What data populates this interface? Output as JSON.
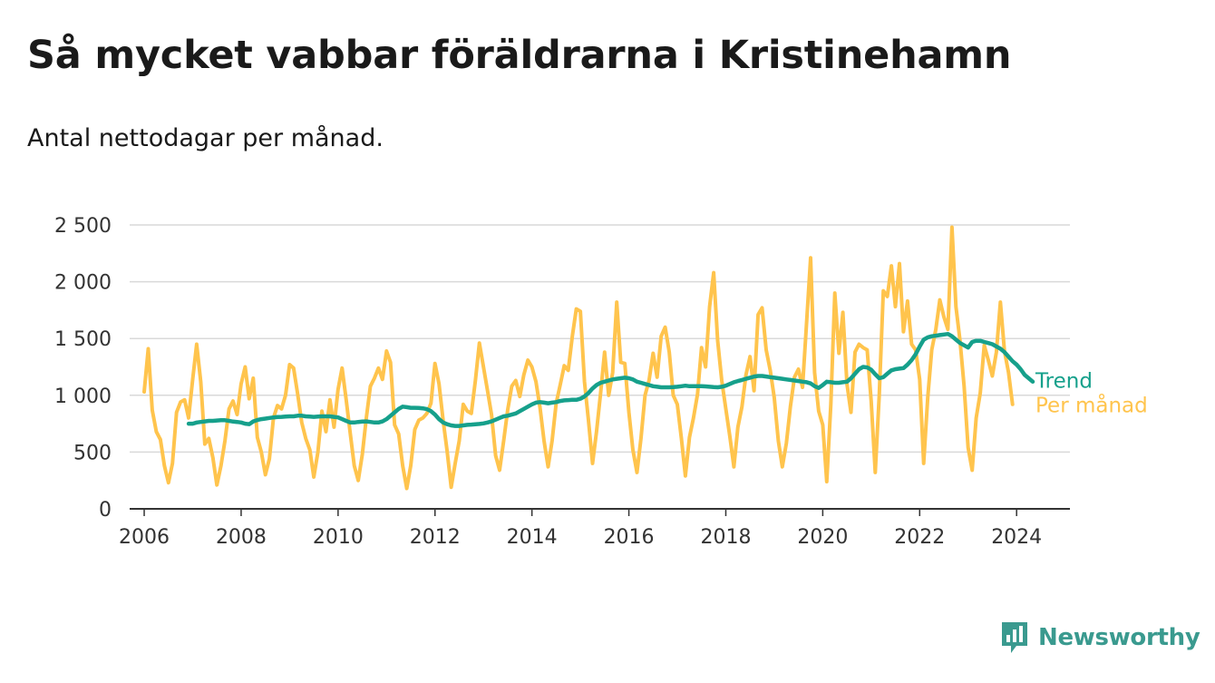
{
  "header": {
    "title": "Så mycket vabbar föräldrarna i Kristinehamn",
    "subtitle": "Antal nettodagar per månad."
  },
  "brand": {
    "name": "Newsworthy",
    "color": "#3a9a8f"
  },
  "chart_data": {
    "type": "line",
    "title": "Så mycket vabbar föräldrarna i Kristinehamn",
    "subtitle": "Antal nettodagar per månad.",
    "xlabel": "",
    "ylabel": "",
    "xlim": [
      2005.7,
      2025.1
    ],
    "ylim": [
      0,
      2500
    ],
    "x_ticks": [
      {
        "value": 2006,
        "label": "2006"
      },
      {
        "value": 2008,
        "label": "2008"
      },
      {
        "value": 2010,
        "label": "2010"
      },
      {
        "value": 2012,
        "label": "2012"
      },
      {
        "value": 2014,
        "label": "2014"
      },
      {
        "value": 2016,
        "label": "2016"
      },
      {
        "value": 2018,
        "label": "2018"
      },
      {
        "value": 2020,
        "label": "2020"
      },
      {
        "value": 2022,
        "label": "2022"
      },
      {
        "value": 2024,
        "label": "2024"
      }
    ],
    "y_ticks": [
      {
        "value": 0,
        "label": "0"
      },
      {
        "value": 500,
        "label": "500"
      },
      {
        "value": 1000,
        "label": "1 000"
      },
      {
        "value": 1500,
        "label": "1 500"
      },
      {
        "value": 2000,
        "label": "2 000"
      },
      {
        "value": 2500,
        "label": "2 500"
      }
    ],
    "grid": true,
    "series": [
      {
        "name": "Per månad",
        "color": "#ffc44d",
        "x_start": 2006.0,
        "x_step_years": 0.08333,
        "values": [
          1030,
          1410,
          870,
          680,
          610,
          380,
          230,
          400,
          850,
          940,
          960,
          800,
          1140,
          1450,
          1120,
          570,
          620,
          450,
          210,
          380,
          600,
          880,
          950,
          830,
          1100,
          1250,
          970,
          1150,
          630,
          500,
          300,
          440,
          800,
          910,
          880,
          1000,
          1270,
          1240,
          1010,
          760,
          620,
          520,
          280,
          500,
          860,
          680,
          960,
          720,
          1050,
          1240,
          960,
          670,
          380,
          250,
          480,
          800,
          1080,
          1150,
          1240,
          1140,
          1390,
          1290,
          740,
          660,
          380,
          180,
          380,
          700,
          780,
          800,
          840,
          930,
          1280,
          1100,
          780,
          510,
          190,
          400,
          600,
          920,
          860,
          840,
          1130,
          1460,
          1250,
          1040,
          830,
          470,
          340,
          600,
          870,
          1080,
          1130,
          990,
          1180,
          1310,
          1250,
          1120,
          890,
          600,
          370,
          600,
          930,
          1090,
          1260,
          1220,
          1520,
          1760,
          1740,
          1120,
          780,
          400,
          680,
          1020,
          1380,
          1000,
          1200,
          1820,
          1290,
          1280,
          850,
          520,
          320,
          620,
          1000,
          1130,
          1370,
          1160,
          1520,
          1600,
          1380,
          1000,
          920,
          620,
          290,
          630,
          800,
          1010,
          1420,
          1250,
          1780,
          2080,
          1480,
          1130,
          880,
          640,
          370,
          720,
          900,
          1180,
          1340,
          1040,
          1710,
          1770,
          1400,
          1220,
          980,
          600,
          370,
          580,
          900,
          1160,
          1230,
          1070,
          1630,
          2210,
          1200,
          860,
          740,
          240,
          920,
          1900,
          1370,
          1730,
          1100,
          850,
          1380,
          1450,
          1420,
          1400,
          950,
          320,
          1000,
          1920,
          1870,
          2140,
          1780,
          2160,
          1560,
          1830,
          1450,
          1400,
          1140,
          400,
          980,
          1400,
          1580,
          1840,
          1690,
          1580,
          2480,
          1780,
          1480,
          1080,
          540,
          340,
          800,
          1020,
          1440,
          1310,
          1170,
          1380,
          1820,
          1390,
          1200,
          920
        ]
      },
      {
        "name": "Trend",
        "color": "#16a08b",
        "x_start": 2006.917,
        "x_step_years": 0.08333,
        "values": [
          750,
          750,
          760,
          765,
          770,
          775,
          775,
          778,
          780,
          780,
          775,
          768,
          765,
          760,
          750,
          745,
          770,
          782,
          790,
          795,
          800,
          805,
          808,
          810,
          812,
          815,
          815,
          820,
          820,
          815,
          812,
          810,
          812,
          815,
          815,
          815,
          810,
          805,
          790,
          775,
          760,
          760,
          765,
          768,
          770,
          765,
          760,
          760,
          770,
          790,
          820,
          850,
          880,
          900,
          895,
          890,
          890,
          888,
          885,
          878,
          860,
          830,
          790,
          760,
          745,
          735,
          730,
          730,
          735,
          740,
          742,
          745,
          748,
          752,
          760,
          770,
          785,
          800,
          815,
          820,
          830,
          840,
          860,
          880,
          900,
          920,
          935,
          940,
          935,
          930,
          935,
          940,
          950,
          955,
          958,
          960,
          960,
          970,
          990,
          1020,
          1060,
          1090,
          1110,
          1120,
          1130,
          1140,
          1145,
          1150,
          1155,
          1150,
          1140,
          1120,
          1110,
          1100,
          1090,
          1080,
          1075,
          1070,
          1070,
          1070,
          1072,
          1075,
          1080,
          1085,
          1080,
          1080,
          1080,
          1080,
          1078,
          1075,
          1072,
          1070,
          1075,
          1085,
          1100,
          1115,
          1125,
          1135,
          1145,
          1155,
          1165,
          1170,
          1170,
          1165,
          1160,
          1155,
          1150,
          1145,
          1140,
          1135,
          1130,
          1125,
          1120,
          1115,
          1105,
          1080,
          1065,
          1090,
          1120,
          1115,
          1110,
          1110,
          1115,
          1120,
          1150,
          1190,
          1230,
          1250,
          1245,
          1225,
          1185,
          1150,
          1160,
          1190,
          1220,
          1230,
          1235,
          1240,
          1270,
          1310,
          1360,
          1430,
          1490,
          1510,
          1520,
          1525,
          1530,
          1535,
          1540,
          1520,
          1490,
          1460,
          1440,
          1420,
          1470,
          1480,
          1480,
          1470,
          1460,
          1450,
          1430,
          1410,
          1380,
          1340,
          1300,
          1270,
          1230,
          1180,
          1150,
          1120
        ]
      }
    ],
    "legend": "right-end labels"
  }
}
